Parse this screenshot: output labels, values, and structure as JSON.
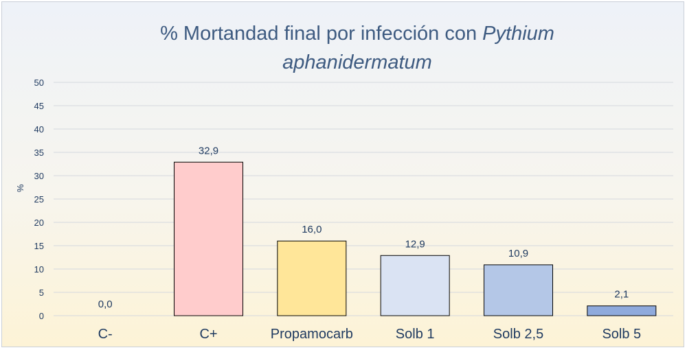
{
  "chart_data": {
    "type": "bar",
    "title": "% Mortandad final por infección con",
    "title_italic_line1": "Pythium",
    "title_italic_line2": "aphanidermatum",
    "ylabel": "%",
    "xlabel": "",
    "ylim": [
      0,
      50
    ],
    "yticks": [
      "0",
      "5",
      "10",
      "15",
      "20",
      "25",
      "30",
      "35",
      "40",
      "45",
      "50"
    ],
    "grid": true,
    "categories": [
      "C-",
      "C+",
      "Propamocarb",
      "Solb 1",
      "Solb 2,5",
      "Solb 5"
    ],
    "values": [
      0.0,
      32.9,
      16.0,
      12.9,
      10.9,
      2.1
    ],
    "data_labels": [
      "0,0",
      "32,9",
      "16,0",
      "12,9",
      "10,9",
      "2,1"
    ],
    "colors": [
      "#ffcccc",
      "#ffcccc",
      "#ffe699",
      "#dae3f3",
      "#b4c7e7",
      "#8faadc"
    ]
  }
}
